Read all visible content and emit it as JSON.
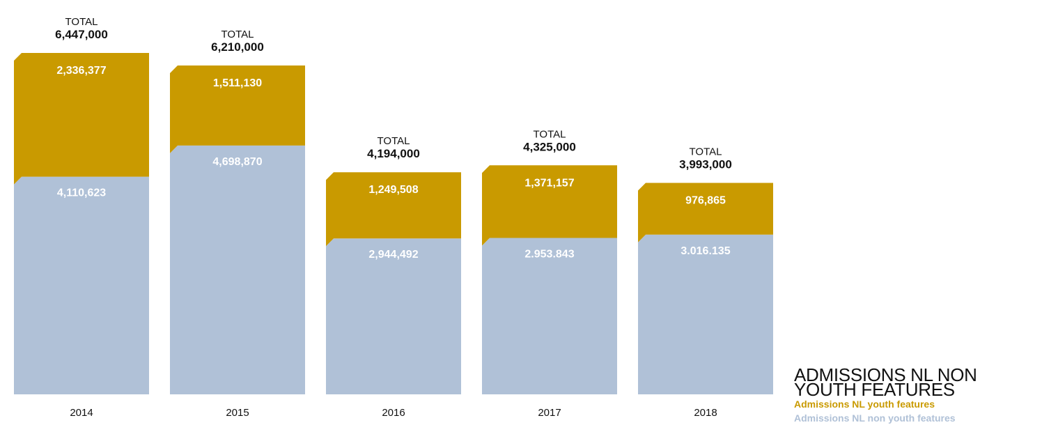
{
  "chart_data": {
    "type": "bar",
    "stacked": true,
    "categories": [
      "2014",
      "2015",
      "2016",
      "2017",
      "2018"
    ],
    "series": [
      {
        "name": "Admissions NL non youth features",
        "color": "#b0c1d7",
        "values": [
          4110623,
          4698870,
          2944492,
          2953843,
          3016135
        ],
        "labels": [
          "4,110,623",
          "4,698,870",
          "2,944,492",
          "2.953.843",
          "3.016.135"
        ]
      },
      {
        "name": "Admissions NL youth features",
        "color": "#c99a00",
        "values": [
          2336377,
          1511130,
          1249508,
          1371157,
          976865
        ],
        "labels": [
          "2,336,377",
          "1,511,130",
          "1,249,508",
          "1,371,157",
          "976,865"
        ]
      }
    ],
    "total_word": "TOTAL",
    "totals": [
      6447000,
      6210000,
      4194000,
      4325000,
      3993000
    ],
    "total_labels": [
      "6,447,000",
      "6,210,000",
      "4,194,000",
      "4,325,000",
      "3,993,000"
    ]
  },
  "legend": {
    "title": "ADMISSIONS NL NON YOUTH FEATURES",
    "items": [
      {
        "label": "Admissions NL youth features",
        "color": "#c99a00"
      },
      {
        "label": "Admissions NL non youth features",
        "color": "#b0c1d7"
      }
    ]
  }
}
